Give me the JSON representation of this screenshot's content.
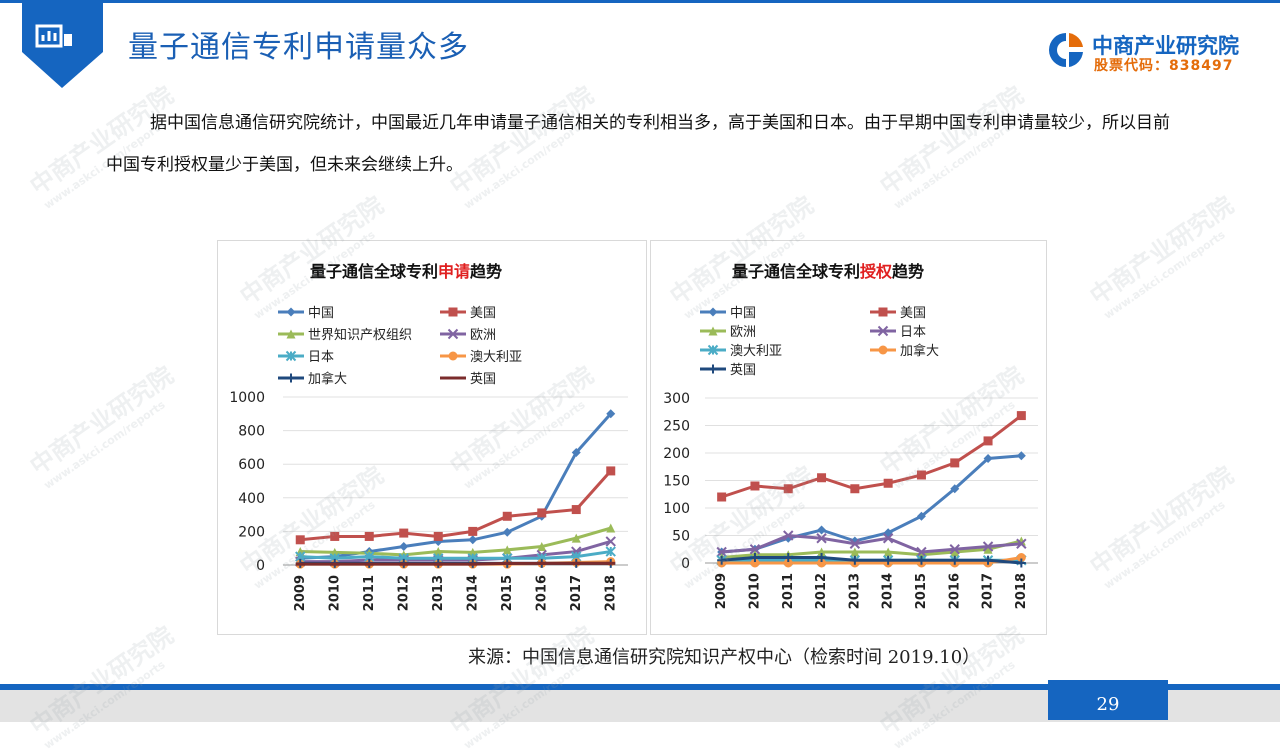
{
  "header": {
    "title": "量子通信专利申请量众多",
    "brand": "中商产业研究院",
    "stock_code": "股票代码：838497"
  },
  "paragraph": "据中国信息通信研究院统计，中国最近几年申请量子通信相关的专利相当多，高于美国和日本。由于早期中国专利申请量较少，所以目前中国专利授权量少于美国，但未来会继续上升。",
  "source": "来源：中国信息通信研究院知识产权中心（检索时间 2019.10）",
  "page_number": "29",
  "watermark": {
    "text": "中商产业研究院",
    "url": "www.askci.com/reports"
  },
  "colors": {
    "brand_blue": "#1565c0",
    "accent_orange": "#e46c0a",
    "title_red": "#e02020"
  },
  "chart_titles": [
    {
      "pre": "量子通信全球专利",
      "hl": "申请",
      "post": "趋势"
    },
    {
      "pre": "量子通信全球专利",
      "hl": "授权",
      "post": "趋势"
    }
  ],
  "chart_data": [
    {
      "type": "line",
      "title": "量子通信全球专利申请趋势",
      "x": [
        "2009",
        "2010",
        "2011",
        "2012",
        "2013",
        "2014",
        "2015",
        "2016",
        "2017",
        "2018"
      ],
      "ylim": [
        0,
        1000
      ],
      "yticks": [
        0,
        200,
        400,
        600,
        800,
        1000
      ],
      "legend_position": "top",
      "series": [
        {
          "name": "中国",
          "color": "#4a7ebb",
          "marker": "diamond",
          "values": [
            40,
            50,
            80,
            110,
            140,
            150,
            195,
            290,
            670,
            900
          ]
        },
        {
          "name": "美国",
          "color": "#c0504d",
          "marker": "square",
          "values": [
            150,
            170,
            170,
            190,
            170,
            200,
            290,
            310,
            330,
            560
          ]
        },
        {
          "name": "世界知识产权组织",
          "color": "#9bbb59",
          "marker": "triangle",
          "values": [
            80,
            75,
            70,
            60,
            80,
            75,
            90,
            110,
            160,
            220
          ]
        },
        {
          "name": "欧洲",
          "color": "#8064a2",
          "marker": "x",
          "values": [
            20,
            20,
            30,
            30,
            30,
            30,
            40,
            60,
            80,
            140
          ]
        },
        {
          "name": "日本",
          "color": "#4bacc6",
          "marker": "star",
          "values": [
            50,
            40,
            50,
            40,
            40,
            40,
            40,
            40,
            50,
            80
          ]
        },
        {
          "name": "澳大利亚",
          "color": "#f79646",
          "marker": "circle",
          "values": [
            5,
            5,
            5,
            5,
            5,
            5,
            5,
            10,
            15,
            20
          ]
        },
        {
          "name": "加拿大",
          "color": "#1f497d",
          "marker": "plus",
          "values": [
            10,
            10,
            10,
            10,
            10,
            10,
            10,
            10,
            10,
            10
          ]
        },
        {
          "name": "英国",
          "color": "#7b2c2c",
          "marker": "dash",
          "values": [
            5,
            5,
            5,
            5,
            5,
            5,
            10,
            10,
            10,
            10
          ]
        }
      ]
    },
    {
      "type": "line",
      "title": "量子通信全球专利授权趋势",
      "x": [
        "2009",
        "2010",
        "2011",
        "2012",
        "2013",
        "2014",
        "2015",
        "2016",
        "2017",
        "2018"
      ],
      "ylim": [
        0,
        300
      ],
      "yticks": [
        0,
        50,
        100,
        150,
        200,
        250,
        300
      ],
      "legend_position": "top",
      "series": [
        {
          "name": "中国",
          "color": "#4a7ebb",
          "marker": "diamond",
          "values": [
            20,
            25,
            45,
            60,
            40,
            55,
            85,
            135,
            190,
            195
          ]
        },
        {
          "name": "美国",
          "color": "#c0504d",
          "marker": "square",
          "values": [
            120,
            140,
            135,
            155,
            135,
            145,
            160,
            182,
            222,
            268
          ]
        },
        {
          "name": "欧洲",
          "color": "#9bbb59",
          "marker": "triangle",
          "values": [
            10,
            15,
            15,
            20,
            20,
            20,
            15,
            20,
            25,
            40
          ]
        },
        {
          "name": "日本",
          "color": "#8064a2",
          "marker": "x",
          "values": [
            20,
            25,
            50,
            45,
            35,
            45,
            20,
            25,
            30,
            35
          ]
        },
        {
          "name": "澳大利亚",
          "color": "#4bacc6",
          "marker": "star",
          "values": [
            5,
            5,
            5,
            5,
            5,
            5,
            5,
            5,
            5,
            5
          ]
        },
        {
          "name": "加拿大",
          "color": "#f79646",
          "marker": "circle",
          "values": [
            0,
            0,
            0,
            0,
            0,
            0,
            0,
            0,
            0,
            10
          ]
        },
        {
          "name": "英国",
          "color": "#1f497d",
          "marker": "plus",
          "values": [
            5,
            10,
            10,
            10,
            5,
            5,
            5,
            5,
            5,
            0
          ]
        }
      ]
    }
  ]
}
